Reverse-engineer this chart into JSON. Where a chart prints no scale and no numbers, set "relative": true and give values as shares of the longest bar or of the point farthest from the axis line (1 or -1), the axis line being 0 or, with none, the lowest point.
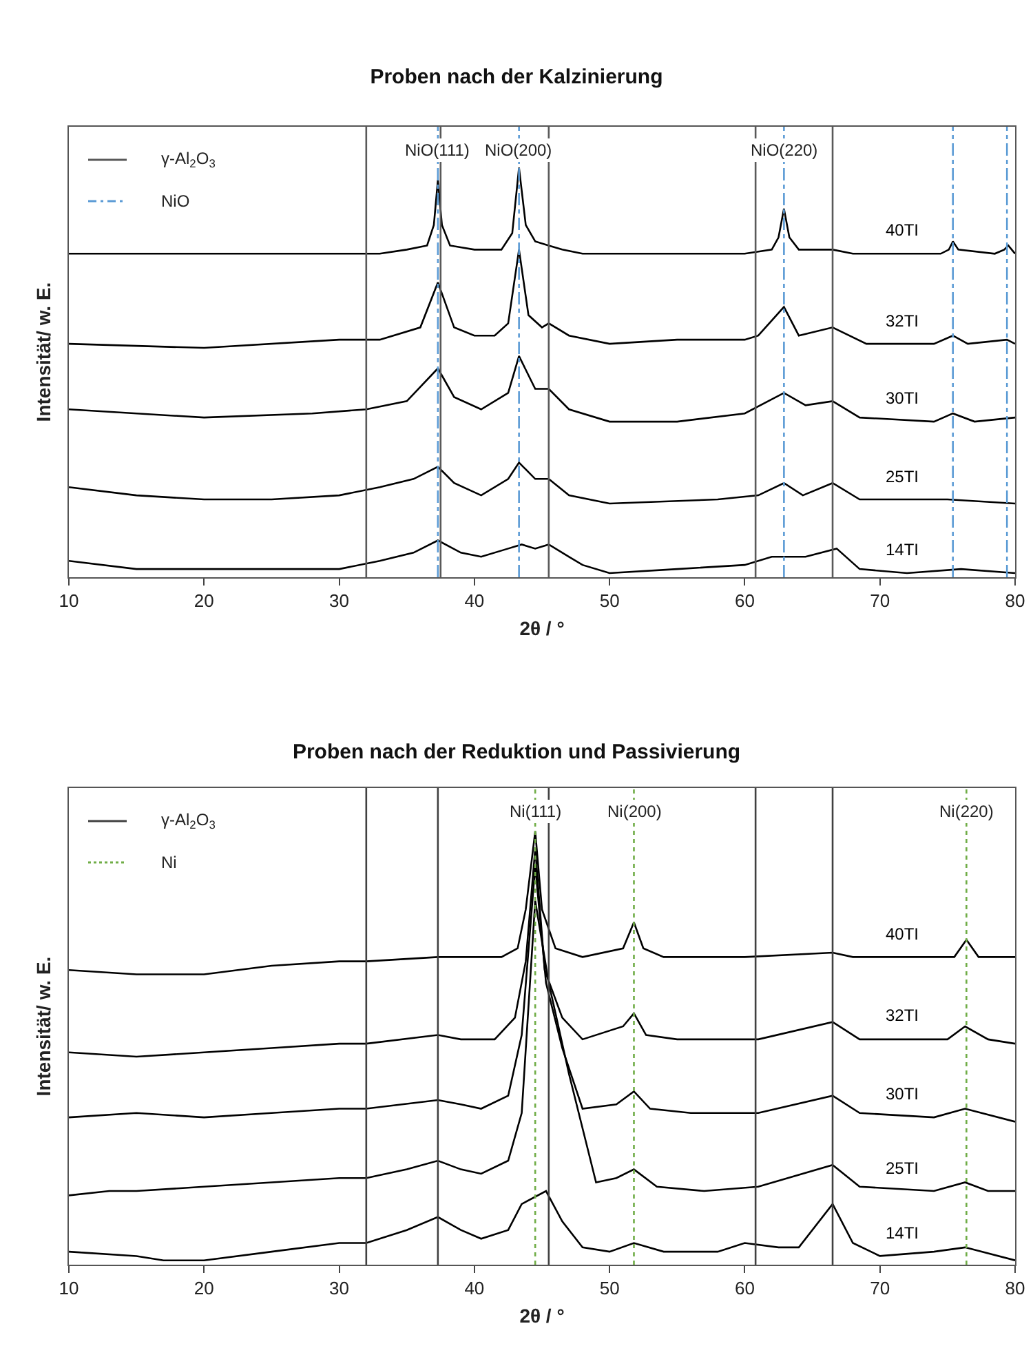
{
  "chart_data": [
    {
      "type": "line",
      "title": "Proben nach der Kalzinierung",
      "xlabel": "2θ / °",
      "ylabel": "Intensität/ w. E.",
      "relative": true,
      "xlim": [
        10,
        80
      ],
      "xticks": [
        10,
        20,
        30,
        40,
        50,
        60,
        70,
        80
      ],
      "grid": false,
      "legend": false,
      "marker": "none",
      "line_style": "solid",
      "annotations": [
        "γ-Al$_{2}$O$_{3}$",
        "NiO"
      ],
      "ref_lines": [
        {
          "axis": "x",
          "value": 32,
          "label": null,
          "color": "#595959",
          "line_style": "solid"
        },
        {
          "axis": "x",
          "value": 37.5,
          "label": null,
          "color": "#595959",
          "line_style": "solid"
        },
        {
          "axis": "x",
          "value": 45.5,
          "label": null,
          "color": "#595959",
          "line_style": "solid"
        },
        {
          "axis": "x",
          "value": 60.8,
          "label": null,
          "color": "#595959",
          "line_style": "solid"
        },
        {
          "axis": "x",
          "value": 66.5,
          "label": null,
          "color": "#595959",
          "line_style": "solid"
        },
        {
          "axis": "x",
          "value": 37.3,
          "label": "NiO(111)",
          "color": "#5b9bd5",
          "line_style": "dashed"
        },
        {
          "axis": "x",
          "value": 43.3,
          "label": "NiO(200)",
          "color": "#5b9bd5",
          "line_style": "dashed"
        },
        {
          "axis": "x",
          "value": 62.9,
          "label": "NiO(220)",
          "color": "#5b9bd5",
          "line_style": "dashed"
        },
        {
          "axis": "x",
          "value": 75.4,
          "label": null,
          "color": "#5b9bd5",
          "line_style": "dashed"
        },
        {
          "axis": "x",
          "value": 79.4,
          "label": null,
          "color": "#5b9bd5",
          "line_style": "dashed"
        }
      ],
      "series": [
        {
          "name": "40TI",
          "color": "#000000",
          "x": [
            10,
            15,
            20,
            25,
            30,
            33,
            35,
            36.5,
            37,
            37.3,
            37.6,
            38.2,
            40,
            42,
            42.8,
            43.3,
            43.8,
            44.5,
            45.5,
            46.5,
            48,
            55,
            60,
            62,
            62.5,
            62.9,
            63.3,
            64,
            66.5,
            68,
            74.5,
            75.1,
            75.4,
            75.8,
            78.5,
            79.2,
            79.5,
            80
          ],
          "values": [
            0.79,
            0.79,
            0.79,
            0.79,
            0.79,
            0.79,
            0.8,
            0.81,
            0.86,
            0.97,
            0.86,
            0.81,
            0.8,
            0.8,
            0.84,
            1.0,
            0.86,
            0.82,
            0.81,
            0.8,
            0.79,
            0.79,
            0.79,
            0.8,
            0.83,
            0.9,
            0.83,
            0.8,
            0.8,
            0.79,
            0.79,
            0.8,
            0.82,
            0.8,
            0.79,
            0.8,
            0.81,
            0.79
          ]
        },
        {
          "name": "32TI",
          "color": "#000000",
          "x": [
            10,
            20,
            30,
            33,
            36,
            37.3,
            38.5,
            40,
            41.5,
            42.5,
            43.3,
            44,
            45,
            45.5,
            47,
            50,
            55,
            60,
            61,
            62.9,
            64,
            66.5,
            69,
            74,
            75.4,
            76.5,
            79.4,
            80
          ],
          "values": [
            0.57,
            0.56,
            0.58,
            0.58,
            0.61,
            0.72,
            0.61,
            0.59,
            0.59,
            0.62,
            0.8,
            0.64,
            0.61,
            0.62,
            0.59,
            0.57,
            0.58,
            0.58,
            0.59,
            0.66,
            0.59,
            0.61,
            0.57,
            0.57,
            0.59,
            0.57,
            0.58,
            0.57
          ]
        },
        {
          "name": "30TI",
          "color": "#000000",
          "x": [
            10,
            20,
            28,
            32,
            35,
            37.3,
            38.5,
            40.5,
            42.5,
            43.3,
            44.5,
            45.5,
            47,
            50,
            55,
            60,
            62.9,
            64.5,
            66.5,
            68.5,
            74,
            75.4,
            77,
            80
          ],
          "values": [
            0.41,
            0.39,
            0.4,
            0.41,
            0.43,
            0.51,
            0.44,
            0.41,
            0.45,
            0.54,
            0.46,
            0.46,
            0.41,
            0.38,
            0.38,
            0.4,
            0.45,
            0.42,
            0.43,
            0.39,
            0.38,
            0.4,
            0.38,
            0.39
          ]
        },
        {
          "name": "25TI",
          "color": "#000000",
          "x": [
            10,
            15,
            20,
            25,
            30,
            33,
            35.5,
            37.3,
            38.5,
            40.5,
            42.5,
            43.3,
            44.5,
            45.5,
            47,
            50,
            58,
            61,
            62.9,
            64.3,
            66.5,
            68.5,
            75,
            80
          ],
          "values": [
            0.22,
            0.2,
            0.19,
            0.19,
            0.2,
            0.22,
            0.24,
            0.27,
            0.23,
            0.2,
            0.24,
            0.28,
            0.24,
            0.24,
            0.2,
            0.18,
            0.19,
            0.2,
            0.23,
            0.2,
            0.23,
            0.19,
            0.19,
            0.18
          ]
        },
        {
          "name": "14TI",
          "color": "#000000",
          "x": [
            10,
            15,
            20,
            30,
            33,
            35.5,
            37.3,
            39,
            40.5,
            42.5,
            43.5,
            44.5,
            45.5,
            47,
            48,
            50,
            55,
            60,
            62,
            63.5,
            64.5,
            66.8,
            68.5,
            72,
            76,
            80
          ],
          "values": [
            0.04,
            0.02,
            0.02,
            0.02,
            0.04,
            0.06,
            0.09,
            0.06,
            0.05,
            0.07,
            0.08,
            0.07,
            0.08,
            0.05,
            0.03,
            0.01,
            0.02,
            0.03,
            0.05,
            0.05,
            0.05,
            0.07,
            0.02,
            0.01,
            0.02,
            0.01
          ]
        }
      ]
    },
    {
      "type": "line",
      "title": "Proben nach der Reduktion und Passivierung",
      "xlabel": "2θ / °",
      "ylabel": "Intensität/ w. E.",
      "relative": true,
      "xlim": [
        10,
        80
      ],
      "xticks": [
        10,
        20,
        30,
        40,
        50,
        60,
        70,
        80
      ],
      "grid": false,
      "legend": false,
      "marker": "none",
      "line_style": "solid",
      "annotations": [
        "γ-Al$_{2}$O$_{3}$",
        "Ni"
      ],
      "ref_lines": [
        {
          "axis": "x",
          "value": 32,
          "label": null,
          "color": "#404040",
          "line_style": "solid"
        },
        {
          "axis": "x",
          "value": 37.3,
          "label": null,
          "color": "#404040",
          "line_style": "solid"
        },
        {
          "axis": "x",
          "value": 45.5,
          "label": null,
          "color": "#404040",
          "line_style": "solid"
        },
        {
          "axis": "x",
          "value": 60.8,
          "label": null,
          "color": "#404040",
          "line_style": "solid"
        },
        {
          "axis": "x",
          "value": 66.5,
          "label": null,
          "color": "#404040",
          "line_style": "solid"
        },
        {
          "axis": "x",
          "value": 44.5,
          "label": "Ni(111)",
          "color": "#70ad47",
          "line_style": "dotted"
        },
        {
          "axis": "x",
          "value": 51.8,
          "label": "Ni(200)",
          "color": "#70ad47",
          "line_style": "dotted"
        },
        {
          "axis": "x",
          "value": 76.4,
          "label": "Ni(220)",
          "color": "#70ad47",
          "line_style": "dotted"
        }
      ],
      "series": [
        {
          "name": "40TI",
          "color": "#000000",
          "x": [
            10,
            15,
            20,
            25,
            30,
            32,
            37.3,
            42,
            43.2,
            43.8,
            44.5,
            45,
            46,
            48,
            51,
            51.8,
            52.5,
            54,
            60,
            66.5,
            68,
            75.5,
            76.4,
            77.3,
            80
          ],
          "values": [
            0.68,
            0.67,
            0.67,
            0.69,
            0.7,
            0.7,
            0.71,
            0.71,
            0.73,
            0.82,
            1.0,
            0.82,
            0.73,
            0.71,
            0.73,
            0.79,
            0.73,
            0.71,
            0.71,
            0.72,
            0.71,
            0.71,
            0.75,
            0.71,
            0.71
          ]
        },
        {
          "name": "32TI",
          "color": "#000000",
          "x": [
            10,
            15,
            20,
            25,
            30,
            32,
            37.3,
            39,
            41.5,
            43,
            43.8,
            44.5,
            45.2,
            46.5,
            48,
            51,
            51.8,
            52.7,
            55,
            61,
            66.5,
            68.5,
            75,
            76.3,
            78,
            80
          ],
          "values": [
            0.49,
            0.48,
            0.49,
            0.5,
            0.51,
            0.51,
            0.53,
            0.52,
            0.52,
            0.57,
            0.7,
            0.96,
            0.68,
            0.57,
            0.52,
            0.55,
            0.58,
            0.53,
            0.52,
            0.52,
            0.56,
            0.52,
            0.52,
            0.55,
            0.52,
            0.51
          ]
        },
        {
          "name": "30TI",
          "color": "#000000",
          "x": [
            10,
            15,
            20,
            25,
            30,
            32,
            37.3,
            39,
            40.5,
            42.5,
            43.5,
            44.5,
            45.3,
            46.5,
            48,
            50.5,
            51.8,
            53,
            56,
            61,
            66.5,
            68.5,
            74,
            76.3,
            80
          ],
          "values": [
            0.34,
            0.35,
            0.34,
            0.35,
            0.36,
            0.36,
            0.38,
            0.37,
            0.36,
            0.39,
            0.53,
            0.92,
            0.65,
            0.5,
            0.36,
            0.37,
            0.4,
            0.36,
            0.35,
            0.35,
            0.39,
            0.35,
            0.34,
            0.36,
            0.33
          ]
        },
        {
          "name": "25TI",
          "color": "#000000",
          "x": [
            10,
            13,
            15,
            20,
            25,
            30,
            32,
            35,
            37.3,
            39,
            40.5,
            42.5,
            43.5,
            44.5,
            45.5,
            47,
            49,
            50.5,
            51.8,
            53.5,
            57,
            61,
            66.5,
            68.5,
            74,
            76.3,
            78,
            80
          ],
          "values": [
            0.16,
            0.17,
            0.17,
            0.18,
            0.19,
            0.2,
            0.2,
            0.22,
            0.24,
            0.22,
            0.21,
            0.24,
            0.35,
            0.84,
            0.65,
            0.44,
            0.19,
            0.2,
            0.22,
            0.18,
            0.17,
            0.18,
            0.23,
            0.18,
            0.17,
            0.19,
            0.17,
            0.17
          ]
        },
        {
          "name": "14TI",
          "color": "#000000",
          "x": [
            10,
            15,
            17,
            20,
            25,
            30,
            32,
            35,
            37.3,
            39,
            40.5,
            42.5,
            43.5,
            45.3,
            46.5,
            48,
            50,
            51.8,
            54,
            58,
            60,
            62.5,
            64,
            66.5,
            68,
            70,
            74,
            76.3,
            80
          ],
          "values": [
            0.03,
            0.02,
            0.01,
            0.01,
            0.03,
            0.05,
            0.05,
            0.08,
            0.11,
            0.08,
            0.06,
            0.08,
            0.14,
            0.17,
            0.1,
            0.04,
            0.03,
            0.05,
            0.03,
            0.03,
            0.05,
            0.04,
            0.04,
            0.14,
            0.05,
            0.02,
            0.03,
            0.04,
            0.01
          ]
        }
      ]
    }
  ]
}
